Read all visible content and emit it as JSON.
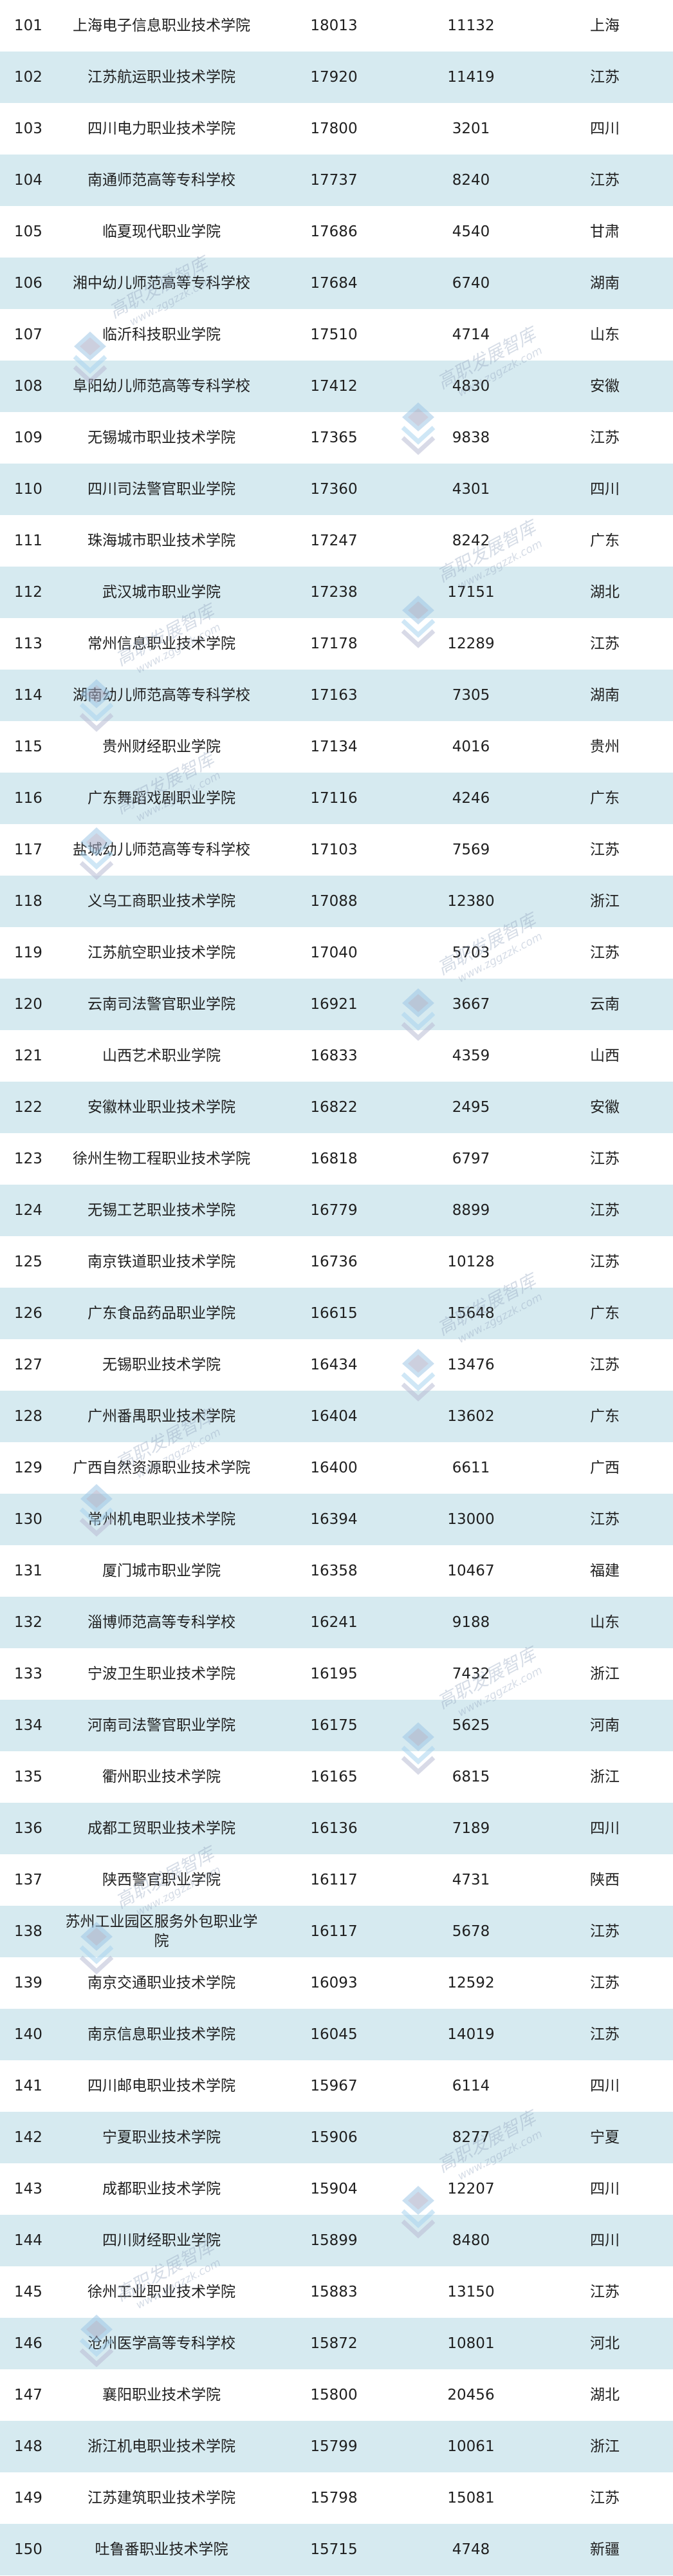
{
  "watermark": {
    "title": "高职发展智库",
    "url": "www.zggzzk.com"
  },
  "colors": {
    "stripe": "#d6eaf0",
    "text": "#1f1f1f"
  },
  "rows": [
    {
      "rank": "101",
      "name": "上海电子信息职业技术学院",
      "value1": "18013",
      "value2": "11132",
      "province": "上海"
    },
    {
      "rank": "102",
      "name": "江苏航运职业技术学院",
      "value1": "17920",
      "value2": "11419",
      "province": "江苏"
    },
    {
      "rank": "103",
      "name": "四川电力职业技术学院",
      "value1": "17800",
      "value2": "3201",
      "province": "四川"
    },
    {
      "rank": "104",
      "name": "南通师范高等专科学校",
      "value1": "17737",
      "value2": "8240",
      "province": "江苏"
    },
    {
      "rank": "105",
      "name": "临夏现代职业学院",
      "value1": "17686",
      "value2": "4540",
      "province": "甘肃"
    },
    {
      "rank": "106",
      "name": "湘中幼儿师范高等专科学校",
      "value1": "17684",
      "value2": "6740",
      "province": "湖南"
    },
    {
      "rank": "107",
      "name": "临沂科技职业学院",
      "value1": "17510",
      "value2": "4714",
      "province": "山东"
    },
    {
      "rank": "108",
      "name": "阜阳幼儿师范高等专科学校",
      "value1": "17412",
      "value2": "4830",
      "province": "安徽"
    },
    {
      "rank": "109",
      "name": "无锡城市职业技术学院",
      "value1": "17365",
      "value2": "9838",
      "province": "江苏"
    },
    {
      "rank": "110",
      "name": "四川司法警官职业学院",
      "value1": "17360",
      "value2": "4301",
      "province": "四川"
    },
    {
      "rank": "111",
      "name": "珠海城市职业技术学院",
      "value1": "17247",
      "value2": "8242",
      "province": "广东"
    },
    {
      "rank": "112",
      "name": "武汉城市职业学院",
      "value1": "17238",
      "value2": "17151",
      "province": "湖北"
    },
    {
      "rank": "113",
      "name": "常州信息职业技术学院",
      "value1": "17178",
      "value2": "12289",
      "province": "江苏"
    },
    {
      "rank": "114",
      "name": "湖南幼儿师范高等专科学校",
      "value1": "17163",
      "value2": "7305",
      "province": "湖南"
    },
    {
      "rank": "115",
      "name": "贵州财经职业学院",
      "value1": "17134",
      "value2": "4016",
      "province": "贵州"
    },
    {
      "rank": "116",
      "name": "广东舞蹈戏剧职业学院",
      "value1": "17116",
      "value2": "4246",
      "province": "广东"
    },
    {
      "rank": "117",
      "name": "盐城幼儿师范高等专科学校",
      "value1": "17103",
      "value2": "7569",
      "province": "江苏"
    },
    {
      "rank": "118",
      "name": "义乌工商职业技术学院",
      "value1": "17088",
      "value2": "12380",
      "province": "浙江"
    },
    {
      "rank": "119",
      "name": "江苏航空职业技术学院",
      "value1": "17040",
      "value2": "5703",
      "province": "江苏"
    },
    {
      "rank": "120",
      "name": "云南司法警官职业学院",
      "value1": "16921",
      "value2": "3667",
      "province": "云南"
    },
    {
      "rank": "121",
      "name": "山西艺术职业学院",
      "value1": "16833",
      "value2": "4359",
      "province": "山西"
    },
    {
      "rank": "122",
      "name": "安徽林业职业技术学院",
      "value1": "16822",
      "value2": "2495",
      "province": "安徽"
    },
    {
      "rank": "123",
      "name": "徐州生物工程职业技术学院",
      "value1": "16818",
      "value2": "6797",
      "province": "江苏"
    },
    {
      "rank": "124",
      "name": "无锡工艺职业技术学院",
      "value1": "16779",
      "value2": "8899",
      "province": "江苏"
    },
    {
      "rank": "125",
      "name": "南京铁道职业技术学院",
      "value1": "16736",
      "value2": "10128",
      "province": "江苏"
    },
    {
      "rank": "126",
      "name": "广东食品药品职业学院",
      "value1": "16615",
      "value2": "15648",
      "province": "广东"
    },
    {
      "rank": "127",
      "name": "无锡职业技术学院",
      "value1": "16434",
      "value2": "13476",
      "province": "江苏"
    },
    {
      "rank": "128",
      "name": "广州番禺职业技术学院",
      "value1": "16404",
      "value2": "13602",
      "province": "广东"
    },
    {
      "rank": "129",
      "name": "广西自然资源职业技术学院",
      "value1": "16400",
      "value2": "6611",
      "province": "广西"
    },
    {
      "rank": "130",
      "name": "常州机电职业技术学院",
      "value1": "16394",
      "value2": "13000",
      "province": "江苏"
    },
    {
      "rank": "131",
      "name": "厦门城市职业学院",
      "value1": "16358",
      "value2": "10467",
      "province": "福建"
    },
    {
      "rank": "132",
      "name": "淄博师范高等专科学校",
      "value1": "16241",
      "value2": "9188",
      "province": "山东"
    },
    {
      "rank": "133",
      "name": "宁波卫生职业技术学院",
      "value1": "16195",
      "value2": "7432",
      "province": "浙江"
    },
    {
      "rank": "134",
      "name": "河南司法警官职业学院",
      "value1": "16175",
      "value2": "5625",
      "province": "河南"
    },
    {
      "rank": "135",
      "name": "衢州职业技术学院",
      "value1": "16165",
      "value2": "6815",
      "province": "浙江"
    },
    {
      "rank": "136",
      "name": "成都工贸职业技术学院",
      "value1": "16136",
      "value2": "7189",
      "province": "四川"
    },
    {
      "rank": "137",
      "name": "陕西警官职业学院",
      "value1": "16117",
      "value2": "4731",
      "province": "陕西"
    },
    {
      "rank": "138",
      "name": "苏州工业园区服务外包职业学院",
      "value1": "16117",
      "value2": "5678",
      "province": "江苏"
    },
    {
      "rank": "139",
      "name": "南京交通职业技术学院",
      "value1": "16093",
      "value2": "12592",
      "province": "江苏"
    },
    {
      "rank": "140",
      "name": "南京信息职业技术学院",
      "value1": "16045",
      "value2": "14019",
      "province": "江苏"
    },
    {
      "rank": "141",
      "name": "四川邮电职业技术学院",
      "value1": "15967",
      "value2": "6114",
      "province": "四川"
    },
    {
      "rank": "142",
      "name": "宁夏职业技术学院",
      "value1": "15906",
      "value2": "8277",
      "province": "宁夏"
    },
    {
      "rank": "143",
      "name": "成都职业技术学院",
      "value1": "15904",
      "value2": "12207",
      "province": "四川"
    },
    {
      "rank": "144",
      "name": "四川财经职业学院",
      "value1": "15899",
      "value2": "8480",
      "province": "四川"
    },
    {
      "rank": "145",
      "name": "徐州工业职业技术学院",
      "value1": "15883",
      "value2": "13150",
      "province": "江苏"
    },
    {
      "rank": "146",
      "name": "沧州医学高等专科学校",
      "value1": "15872",
      "value2": "10801",
      "province": "河北"
    },
    {
      "rank": "147",
      "name": "襄阳职业技术学院",
      "value1": "15800",
      "value2": "20456",
      "province": "湖北"
    },
    {
      "rank": "148",
      "name": "浙江机电职业技术学院",
      "value1": "15799",
      "value2": "10061",
      "province": "浙江"
    },
    {
      "rank": "149",
      "name": "江苏建筑职业技术学院",
      "value1": "15798",
      "value2": "15081",
      "province": "江苏"
    },
    {
      "rank": "150",
      "name": "吐鲁番职业技术学院",
      "value1": "15715",
      "value2": "4748",
      "province": "新疆"
    }
  ]
}
